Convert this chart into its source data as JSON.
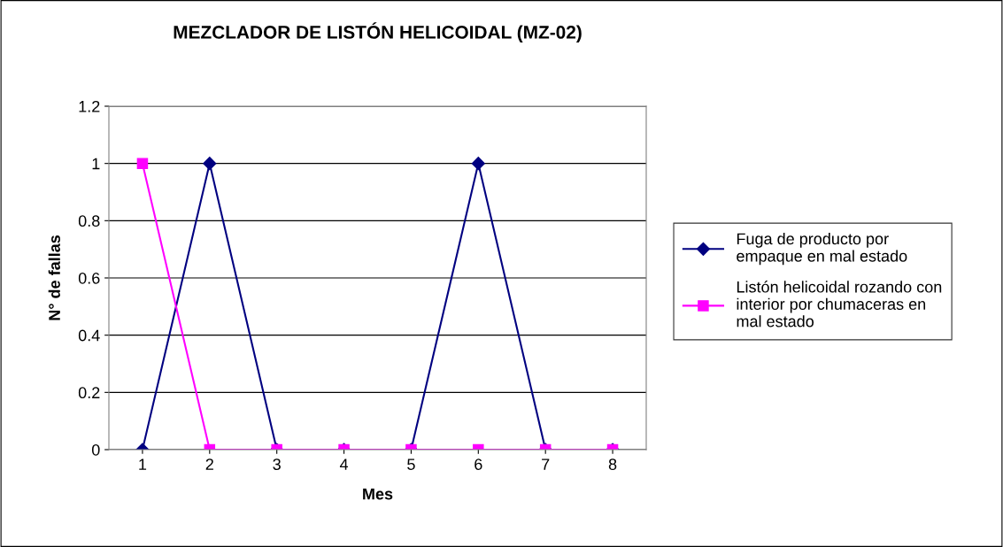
{
  "chart_data": {
    "type": "line",
    "title": "MEZCLADOR DE LISTÓN HELICOIDAL (MZ-02)",
    "xlabel": "Mes",
    "ylabel": "N° de fallas",
    "categories": [
      "1",
      "2",
      "3",
      "4",
      "5",
      "6",
      "7",
      "8"
    ],
    "series": [
      {
        "name": "Fuga de producto por\nempaque en mal estado",
        "color": "#000080",
        "marker": "diamond",
        "values": [
          0,
          1,
          0,
          0,
          0,
          1,
          0,
          0
        ]
      },
      {
        "name": "Listón helicoidal rozando con\ninterior por chumaceras en\nmal estado",
        "color": "#ff00ff",
        "marker": "square",
        "values": [
          1,
          0,
          0,
          0,
          0,
          0,
          0,
          0
        ]
      }
    ],
    "ylim": [
      0,
      1.2
    ],
    "yticks": [
      0,
      0.2,
      0.4,
      0.6,
      0.8,
      1,
      1.2
    ],
    "grid": "y",
    "legend": "right",
    "line_style": "solid"
  }
}
